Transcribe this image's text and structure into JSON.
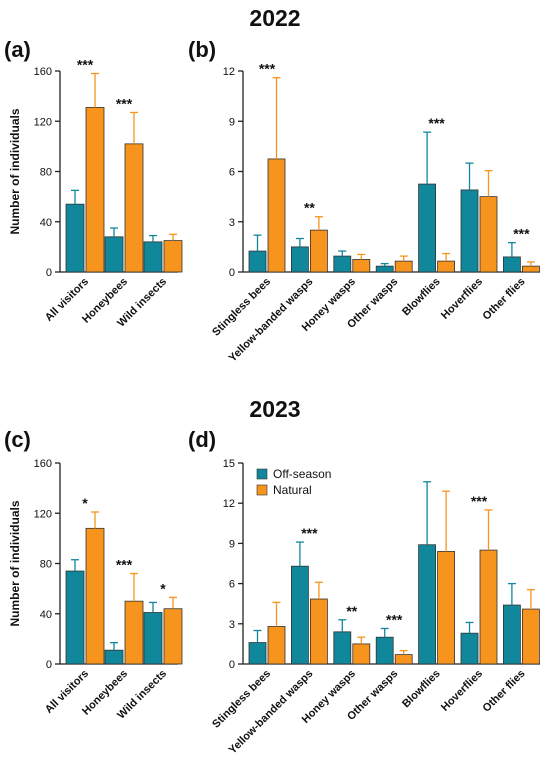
{
  "figure": {
    "year_top": "2022",
    "year_bottom": "2023"
  },
  "colors": {
    "off_season": "#11879B",
    "natural": "#F7941D",
    "axis": "#222222"
  },
  "chart_data": [
    {
      "panel": "(a)",
      "type": "bar",
      "ylabel": "Number of individuals",
      "ylim": [
        0,
        160
      ],
      "yticks": [
        "0",
        "40",
        "80",
        "120",
        "160"
      ],
      "categories": [
        "All visitors",
        "Honeybees",
        "Wild insects"
      ],
      "series": [
        {
          "name": "Off-season",
          "values": [
            54,
            28,
            24
          ],
          "errors": [
            11,
            7,
            5
          ]
        },
        {
          "name": "Natural",
          "values": [
            131,
            102,
            25
          ],
          "errors": [
            27,
            25,
            5
          ]
        }
      ],
      "significance": [
        "***",
        "***",
        ""
      ]
    },
    {
      "panel": "(b)",
      "type": "bar",
      "ylabel": "",
      "ylim": [
        0,
        12
      ],
      "yticks": [
        "0",
        "3",
        "6",
        "9",
        "12"
      ],
      "categories": [
        "Stingless bees",
        "Yellow-banded wasps",
        "Honey wasps",
        "Other wasps",
        "Blowflies",
        "Hoverflies",
        "Other flies"
      ],
      "series": [
        {
          "name": "Off-season",
          "values": [
            1.25,
            1.5,
            0.95,
            0.35,
            5.25,
            4.9,
            0.9
          ],
          "errors": [
            0.95,
            0.5,
            0.3,
            0.15,
            3.1,
            1.6,
            0.85
          ]
        },
        {
          "name": "Natural",
          "values": [
            6.75,
            2.5,
            0.75,
            0.65,
            0.65,
            4.5,
            0.35
          ],
          "errors": [
            4.85,
            0.8,
            0.3,
            0.3,
            0.45,
            1.55,
            0.25
          ]
        }
      ],
      "significance": [
        "***",
        "**",
        "",
        "",
        "***",
        "",
        "***"
      ]
    },
    {
      "panel": "(c)",
      "type": "bar",
      "ylabel": "Number of individuals",
      "ylim": [
        0,
        160
      ],
      "yticks": [
        "0",
        "40",
        "80",
        "120",
        "160"
      ],
      "categories": [
        "All visitors",
        "Honeybees",
        "Wild insects"
      ],
      "series": [
        {
          "name": "Off-season",
          "values": [
            74,
            11,
            41
          ],
          "errors": [
            9,
            6,
            8
          ]
        },
        {
          "name": "Natural",
          "values": [
            108,
            50,
            44
          ],
          "errors": [
            13,
            22,
            9
          ]
        }
      ],
      "significance": [
        "*",
        "***",
        "*"
      ]
    },
    {
      "panel": "(d)",
      "type": "bar",
      "ylabel": "",
      "ylim": [
        0,
        15
      ],
      "yticks": [
        "0",
        "3",
        "6",
        "9",
        "12",
        "15"
      ],
      "categories": [
        "Stingless bees",
        "Yellow-banded wasps",
        "Honey wasps",
        "Other wasps",
        "Blowflies",
        "Hoverflies",
        "Other flies"
      ],
      "legend": {
        "position": "top-left",
        "entries": [
          "Off-season",
          "Natural"
        ]
      },
      "series": [
        {
          "name": "Off-season",
          "values": [
            1.6,
            7.3,
            2.4,
            2.0,
            8.9,
            2.3,
            4.4
          ],
          "errors": [
            0.9,
            1.8,
            0.9,
            0.65,
            4.7,
            0.8,
            1.6
          ]
        },
        {
          "name": "Natural",
          "values": [
            2.8,
            4.85,
            1.5,
            0.7,
            8.4,
            8.5,
            4.1
          ],
          "errors": [
            1.8,
            1.25,
            0.5,
            0.3,
            4.5,
            3.0,
            1.45
          ]
        }
      ],
      "significance": [
        "",
        "***",
        "**",
        "***",
        "",
        "***",
        ""
      ]
    }
  ]
}
